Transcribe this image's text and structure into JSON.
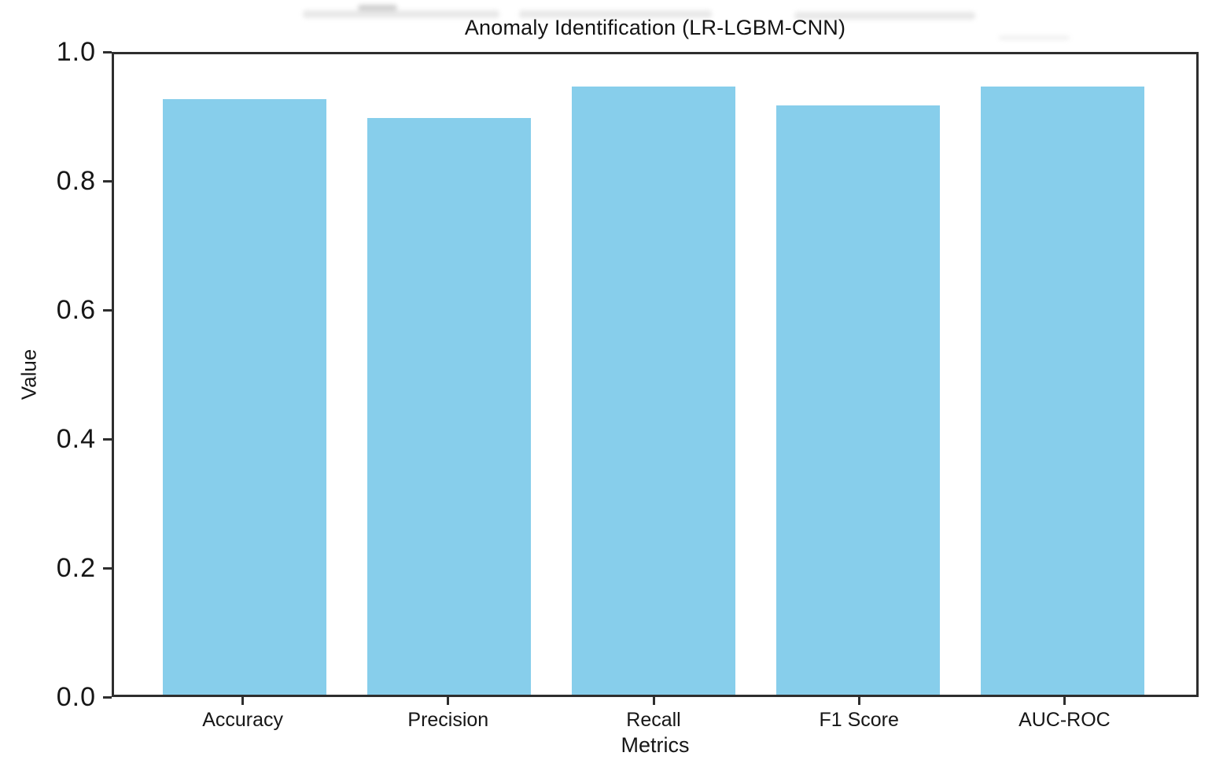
{
  "chart_data": {
    "type": "bar",
    "title": "Anomaly Identification (LR-LGBM-CNN)",
    "categories": [
      "Accuracy",
      "Precision",
      "Recall",
      "F1 Score",
      "AUC-ROC"
    ],
    "values": [
      0.93,
      0.9,
      0.95,
      0.92,
      0.95
    ],
    "xlabel": "Metrics",
    "ylabel": "Value",
    "ylim": [
      0.0,
      1.0
    ],
    "yticks": [
      0.0,
      0.2,
      0.4,
      0.6,
      0.8,
      1.0
    ],
    "ytick_labels": [
      "0.0",
      "0.2",
      "0.4",
      "0.6",
      "0.8",
      "1.0"
    ],
    "bar_color": "#87CEEB",
    "axis_color": "#2e2e2e",
    "text_color": "#161616",
    "grid": false,
    "legend": "none",
    "bar_width_fraction": 0.8
  }
}
